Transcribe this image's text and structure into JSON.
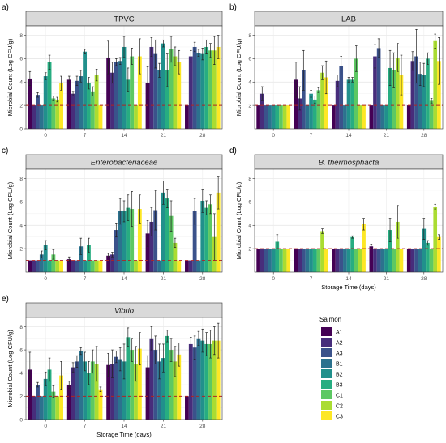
{
  "legend": {
    "title": "Salmon",
    "labels": [
      "A1",
      "A2",
      "A3",
      "B1",
      "B2",
      "B3",
      "C1",
      "C2",
      "C3"
    ],
    "colors": [
      "#440154",
      "#472D7B",
      "#3B528B",
      "#2C728E",
      "#21908C",
      "#27AD81",
      "#5DC863",
      "#AADC32",
      "#FDE725"
    ]
  },
  "chart_data": [
    {
      "panel": "a)",
      "title": "TPVC",
      "type": "bar",
      "categories": [
        "0",
        "7",
        "14",
        "21",
        "28"
      ],
      "ylabel": "Microbial Count (Log CFU/g)",
      "xlabel": "",
      "yticks": [
        0,
        2,
        4,
        6,
        8
      ],
      "ylim": [
        0,
        8.8
      ],
      "threshold": 2,
      "values": [
        [
          4.3,
          2.0,
          2.9,
          2.0,
          4.5,
          5.7,
          2.6,
          2.5,
          3.9
        ],
        [
          4.2,
          3.0,
          4.1,
          4.5,
          6.6,
          3.9,
          3.2,
          4.6,
          2.0
        ],
        [
          6.1,
          4.8,
          5.7,
          5.8,
          7.0,
          4.2,
          6.2,
          2.0,
          6.2
        ],
        [
          3.9,
          7.0,
          6.4,
          5.0,
          7.3,
          5.0,
          6.8,
          6.2,
          5.7
        ],
        [
          2.0,
          6.2,
          7.0,
          6.5,
          6.4,
          7.0,
          6.7,
          6.7,
          7.0
        ]
      ],
      "errors": [
        [
          0.6,
          0,
          0.2,
          0,
          0.3,
          0.6,
          0.2,
          0.2,
          0.6
        ],
        [
          0.3,
          0.2,
          0.4,
          0.5,
          0.2,
          0.5,
          0.4,
          0.5,
          0
        ],
        [
          1.4,
          0.9,
          0.3,
          0.3,
          0.9,
          1.0,
          0.7,
          0,
          1.5
        ],
        [
          1.4,
          0.8,
          1.2,
          0.6,
          0.3,
          1.4,
          1.1,
          0.8,
          1.0
        ],
        [
          0,
          0.5,
          0.4,
          0.3,
          0.5,
          0.6,
          0.6,
          1.2,
          1.0
        ]
      ]
    },
    {
      "panel": "b)",
      "title": "LAB",
      "type": "bar",
      "categories": [
        "0",
        "7",
        "14",
        "21",
        "28"
      ],
      "ylabel": "Microbial Count (Log CFU/g)",
      "xlabel": "",
      "yticks": [
        2,
        4,
        6,
        8
      ],
      "ylim": [
        0,
        8.8
      ],
      "threshold": 2,
      "values": [
        [
          2.0,
          3.0,
          2.0,
          2.0,
          2.0,
          2.0,
          2.0,
          2.0,
          2.0
        ],
        [
          4.2,
          2.6,
          5.0,
          2.0,
          3.0,
          2.5,
          3.3,
          4.8,
          4.4
        ],
        [
          2.0,
          4.1,
          5.4,
          2.0,
          4.2,
          4.2,
          6.0,
          2.0,
          2.0
        ],
        [
          2.0,
          6.2,
          6.9,
          2.0,
          2.0,
          5.2,
          5.0,
          6.1,
          4.6
        ],
        [
          2.0,
          5.8,
          6.2,
          4.7,
          4.6,
          6.0,
          2.4,
          7.5,
          5.8
        ]
      ],
      "errors": [
        [
          0,
          0.6,
          0,
          0,
          0,
          0,
          0,
          0,
          0
        ],
        [
          1.5,
          1.0,
          1.7,
          0,
          0.3,
          0.3,
          0.2,
          0.6,
          1.4
        ],
        [
          0,
          0.5,
          0.8,
          0,
          0.2,
          0.2,
          1.1,
          0,
          0
        ],
        [
          0,
          1.0,
          0.8,
          0,
          0,
          1.5,
          1.5,
          1.2,
          1.7
        ],
        [
          0,
          0.8,
          2.3,
          1.0,
          1.0,
          0.5,
          0.2,
          0.6,
          2.0
        ]
      ]
    },
    {
      "panel": "c)",
      "title": "Enterobacteriaceae",
      "type": "bar",
      "categories": [
        "0",
        "7",
        "14",
        "21",
        "28"
      ],
      "ylabel": "Microbial Count (Log CFU/g)",
      "xlabel": "",
      "yticks": [
        2,
        4,
        6,
        8
      ],
      "ylim": [
        0,
        8.8
      ],
      "threshold": 1,
      "values": [
        [
          1.0,
          1.0,
          1.0,
          1.5,
          2.3,
          1.0,
          1.5,
          1.0,
          1.0
        ],
        [
          1.1,
          1.0,
          1.0,
          2.2,
          1.0,
          2.3,
          1.0,
          1.0,
          1.0
        ],
        [
          1.4,
          1.5,
          3.6,
          5.2,
          5.2,
          5.5,
          5.4,
          1.0,
          5.4
        ],
        [
          3.3,
          4.3,
          5.3,
          1.0,
          6.8,
          6.3,
          4.8,
          2.5,
          1.0
        ],
        [
          1.0,
          1.0,
          5.2,
          1.0,
          6.1,
          5.5,
          5.8,
          3.0,
          6.8
        ]
      ],
      "errors": [
        [
          0,
          0,
          0,
          0.3,
          0.4,
          0,
          0.4,
          0,
          0
        ],
        [
          0.2,
          0,
          0,
          0.7,
          0,
          0.6,
          0,
          0,
          0
        ],
        [
          0.2,
          0.2,
          0.6,
          1.1,
          0.9,
          1.1,
          1.5,
          0,
          1.2
        ],
        [
          1.1,
          1.2,
          1.7,
          0,
          1.0,
          0.8,
          1.3,
          0.4,
          0
        ],
        [
          0,
          0,
          1.1,
          0,
          1.0,
          0.6,
          0.8,
          2.0,
          1.4
        ]
      ]
    },
    {
      "panel": "d)",
      "title": "B. thermosphacta",
      "type": "bar",
      "categories": [
        "0",
        "7",
        "14",
        "21",
        "28"
      ],
      "ylabel": "Microbial Count (Log CFU/g)",
      "xlabel": "Storage Time (days)",
      "yticks": [
        2,
        4,
        6,
        8
      ],
      "ylim": [
        0,
        8.8
      ],
      "threshold": 2,
      "values": [
        [
          2.0,
          2.0,
          2.0,
          2.0,
          2.0,
          2.6,
          2.0,
          2.0,
          2.0
        ],
        [
          2.0,
          2.0,
          2.0,
          2.0,
          2.0,
          2.0,
          2.0,
          3.5,
          2.0
        ],
        [
          2.0,
          2.0,
          2.0,
          2.0,
          2.0,
          3.0,
          2.0,
          2.0,
          4.1
        ],
        [
          2.2,
          2.0,
          2.0,
          2.0,
          2.0,
          3.6,
          2.0,
          4.3,
          2.0
        ],
        [
          2.0,
          2.0,
          2.0,
          2.0,
          3.7,
          2.5,
          2.0,
          5.6,
          3.0
        ]
      ],
      "errors": [
        [
          0,
          0,
          0,
          0,
          0,
          0.6,
          0,
          0,
          0
        ],
        [
          0,
          0,
          0,
          0,
          0,
          0,
          0,
          0.2,
          0
        ],
        [
          0,
          0,
          0,
          0,
          0,
          0.1,
          0,
          0,
          0.5
        ],
        [
          0.2,
          0,
          0,
          0,
          0,
          1.0,
          0,
          1.4,
          0
        ],
        [
          0,
          0,
          0,
          0,
          0.9,
          0.2,
          0,
          0.2,
          0.2
        ]
      ]
    },
    {
      "panel": "e)",
      "title": "Vibrio",
      "type": "bar",
      "categories": [
        "0",
        "7",
        "14",
        "21",
        "28"
      ],
      "ylabel": "Microbial Count (Log CFU/g)",
      "xlabel": "Storage Time (days)",
      "yticks": [
        0,
        2,
        4,
        6,
        8
      ],
      "ylim": [
        0,
        8.8
      ],
      "threshold": 2,
      "values": [
        [
          4.3,
          2.0,
          3.0,
          2.0,
          3.5,
          4.3,
          2.4,
          2.0,
          3.8
        ],
        [
          3.0,
          4.5,
          5.0,
          5.9,
          5.0,
          4.0,
          5.0,
          4.8,
          2.6
        ],
        [
          4.7,
          4.8,
          5.4,
          5.2,
          5.0,
          7.1,
          6.0,
          4.8,
          6.1
        ],
        [
          4.5,
          7.0,
          6.0,
          5.0,
          5.3,
          7.2,
          6.0,
          5.0,
          5.6
        ],
        [
          2.0,
          6.5,
          6.2,
          7.0,
          6.8,
          6.5,
          6.5,
          6.8,
          6.8
        ]
      ],
      "errors": [
        [
          1.5,
          0,
          0.2,
          0,
          0.6,
          1.0,
          0.5,
          0,
          1.2
        ],
        [
          0.3,
          0.4,
          0.5,
          0.3,
          0.8,
          1.0,
          1.0,
          1.5,
          0.2
        ],
        [
          1.0,
          1.2,
          0.5,
          1.0,
          1.5,
          0.8,
          1.0,
          1.5,
          1.4
        ],
        [
          1.0,
          1.0,
          1.2,
          1.5,
          1.2,
          0.5,
          1.0,
          1.3,
          1.0
        ],
        [
          0,
          0.6,
          1.0,
          0.6,
          1.0,
          1.0,
          1.2,
          1.2,
          1.5
        ]
      ]
    }
  ]
}
